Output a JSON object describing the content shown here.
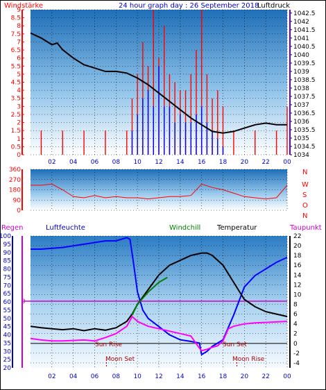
{
  "header": {
    "left_label": "Windstärke",
    "title": "24 hour graph day : 26 September 2018",
    "right_label": "Luftdruck"
  },
  "colors": {
    "frame": "#ffffff",
    "wind": "#ff0000",
    "gust": "#0000ff",
    "pressure": "#000000",
    "humidity": "#0000ff",
    "windchill": "#008000",
    "temperature": "#000000",
    "dewpoint": "#ff00ff",
    "rain": "#ff0000",
    "zero_line": "#cc00cc"
  },
  "x_ticks": [
    "02",
    "04",
    "06",
    "08",
    "10",
    "12",
    "14",
    "16",
    "18",
    "20",
    "22",
    "00"
  ],
  "wind_panel": {
    "left_ticks": [
      "0",
      "0.5",
      "1",
      "1.5",
      "2",
      "2.5",
      "3",
      "3.5",
      "4",
      "4.5",
      "5",
      "5.5",
      "6",
      "6.5",
      "7",
      "7.5",
      "8",
      "8.5",
      "9"
    ],
    "right_ticks": [
      "1034",
      "1034.5",
      "1035",
      "1035.5",
      "1036",
      "1036.5",
      "1037",
      "1037.5",
      "1038",
      "1038.5",
      "1039",
      "1039.5",
      "1040",
      "1040.5",
      "1041",
      "1041.5",
      "1042",
      "1042.5"
    ]
  },
  "dir_panel": {
    "left_ticks": [
      "0",
      "90",
      "180",
      "270",
      "360"
    ],
    "right_labels": [
      "N",
      "W",
      "S",
      "O",
      "N"
    ]
  },
  "temp_panel": {
    "legend": {
      "rain": "Regen",
      "humidity": "Luftfeuchte",
      "windchill": "Windchill",
      "temperature": "Temperatur",
      "dewpoint": "Taupunkt"
    },
    "left_ticks": [
      "20",
      "25",
      "30",
      "35",
      "40",
      "45",
      "50",
      "55",
      "60",
      "65",
      "70",
      "75",
      "80",
      "85",
      "90",
      "95",
      "100"
    ],
    "right_ticks": [
      "-4",
      "-2",
      "0",
      "2",
      "4",
      "6",
      "8",
      "10",
      "12",
      "14",
      "16",
      "18",
      "20",
      "22"
    ],
    "rain_zero_label": "0",
    "annotations": {
      "sun_rise": "Sun Rise",
      "sun_set": "Sun Set",
      "moon_set": "Moon Set",
      "moon_rise": "Moon Rise"
    }
  },
  "chart_data": [
    {
      "type": "line",
      "title": "24 hour graph day : 26 September 2018",
      "ylabel_left": "Windstärke",
      "ylabel_right": "Luftdruck",
      "xlim": [
        0,
        24
      ],
      "ylim_left": [
        0,
        9
      ],
      "ylim_right": [
        1034,
        1042.7
      ],
      "series": [
        {
          "name": "Luftdruck",
          "axis": "right",
          "x": [
            0,
            1,
            2,
            2.5,
            3,
            4,
            5,
            6,
            7,
            8,
            9,
            10,
            11,
            12,
            13,
            14,
            15,
            16,
            17,
            18,
            19,
            20,
            21,
            22,
            23,
            24
          ],
          "y": [
            1041.3,
            1041.0,
            1040.6,
            1040.7,
            1040.3,
            1039.8,
            1039.4,
            1039.2,
            1039.0,
            1039.0,
            1038.9,
            1038.6,
            1038.2,
            1037.7,
            1037.2,
            1036.7,
            1036.2,
            1035.8,
            1035.4,
            1035.3,
            1035.4,
            1035.6,
            1035.8,
            1035.9,
            1035.8,
            1035.8
          ]
        },
        {
          "name": "Wind",
          "axis": "left",
          "x": [
            0,
            1,
            2,
            3,
            4,
            5,
            6,
            7,
            8,
            9,
            9.5,
            10,
            10.5,
            11,
            11.5,
            12,
            12.5,
            13,
            13.5,
            14,
            14.5,
            15,
            15.5,
            16,
            16.5,
            17,
            17.5,
            18,
            19,
            20,
            21,
            22,
            23,
            24
          ],
          "y": [
            0,
            1.5,
            0,
            1.5,
            0,
            1.5,
            0,
            1.5,
            0,
            1.5,
            3.5,
            5,
            7,
            5.5,
            9,
            6,
            8,
            5,
            4.5,
            4,
            4,
            5,
            6.5,
            9,
            5,
            3.5,
            4,
            3,
            1.5,
            0,
            1.5,
            0,
            1.5,
            3
          ]
        },
        {
          "name": "Gust",
          "axis": "left",
          "x": [
            9,
            9.5,
            10,
            10.5,
            11,
            11.5,
            12,
            12.5,
            13,
            13.5,
            14,
            14.5,
            15,
            15.5,
            16,
            16.5,
            17,
            17.5,
            18
          ],
          "y": [
            0,
            1.5,
            2.5,
            3.5,
            4,
            3,
            5.5,
            3,
            3,
            2,
            2.5,
            2,
            2,
            2.5,
            3,
            2,
            1.5,
            1,
            0.5
          ]
        }
      ]
    },
    {
      "type": "scatter",
      "title": "",
      "ylabel": "",
      "xlim": [
        0,
        24
      ],
      "ylim": [
        0,
        360
      ],
      "series": [
        {
          "x": [
            0,
            1,
            2,
            3,
            4,
            5,
            6,
            7,
            8,
            9,
            10,
            11,
            12,
            13,
            14,
            15,
            16,
            17,
            18,
            19,
            20,
            21,
            22,
            23,
            24
          ],
          "y": [
            220,
            220,
            230,
            180,
            120,
            110,
            130,
            110,
            120,
            110,
            110,
            100,
            110,
            120,
            120,
            130,
            230,
            200,
            180,
            150,
            120,
            110,
            100,
            110,
            220
          ]
        }
      ]
    },
    {
      "type": "line",
      "title": "",
      "xlim": [
        0,
        24
      ],
      "ylim_left": [
        20,
        100
      ],
      "ylim_right": [
        -5,
        22
      ],
      "series": [
        {
          "name": "Luftfeuchte",
          "axis": "left",
          "x": [
            0,
            1,
            3,
            5,
            7,
            8,
            9,
            9.3,
            9.6,
            10,
            10.5,
            11,
            12,
            13,
            14,
            15,
            15.8,
            16,
            16.5,
            17,
            18,
            19,
            20,
            21,
            22,
            23,
            24
          ],
          "y": [
            92,
            92,
            93,
            95,
            97,
            97,
            99,
            98,
            85,
            66,
            55,
            50,
            45,
            40,
            37,
            36,
            35,
            28,
            30,
            33,
            37,
            52,
            69,
            76,
            80,
            84,
            87
          ]
        },
        {
          "name": "Temperatur",
          "axis": "right",
          "x": [
            0,
            1,
            2,
            3,
            4,
            5,
            6,
            7,
            8,
            9,
            9.5,
            10,
            11,
            12,
            13,
            14,
            15,
            16,
            16.5,
            17,
            18,
            19,
            20,
            21,
            22,
            23,
            24
          ],
          "y": [
            3.5,
            3.2,
            3.0,
            2.8,
            3.0,
            2.6,
            3.0,
            2.7,
            3.2,
            4.5,
            6.0,
            8.0,
            11.0,
            14.0,
            16.0,
            17.0,
            18.0,
            18.5,
            18.5,
            18.0,
            16.0,
            12.5,
            9.0,
            7.5,
            6.5,
            6.0,
            5.5
          ]
        },
        {
          "name": "Windchill",
          "axis": "right",
          "x": [
            9.5,
            10,
            11,
            12,
            12.8
          ],
          "y": [
            5.8,
            8.0,
            10.5,
            12.5,
            13.5
          ]
        },
        {
          "name": "Taupunkt",
          "axis": "right",
          "x": [
            0,
            1,
            2,
            3,
            4,
            5,
            6,
            7,
            8,
            9,
            9.5,
            10,
            10.5,
            11,
            12,
            13,
            14,
            15,
            15.8,
            16,
            16.5,
            17,
            17.5,
            18,
            18.5,
            19,
            20,
            21,
            22,
            23,
            24
          ],
          "y": [
            1.0,
            0.7,
            0.5,
            0.5,
            0.6,
            0.7,
            0.5,
            1.2,
            2.0,
            3.5,
            5.5,
            4.5,
            4.0,
            3.5,
            3.0,
            2.5,
            2.0,
            1.5,
            -1.0,
            -1.5,
            -1.2,
            -0.8,
            -0.5,
            0.5,
            3.0,
            3.5,
            4.0,
            4.2,
            4.3,
            4.4,
            4.5
          ]
        }
      ]
    }
  ]
}
